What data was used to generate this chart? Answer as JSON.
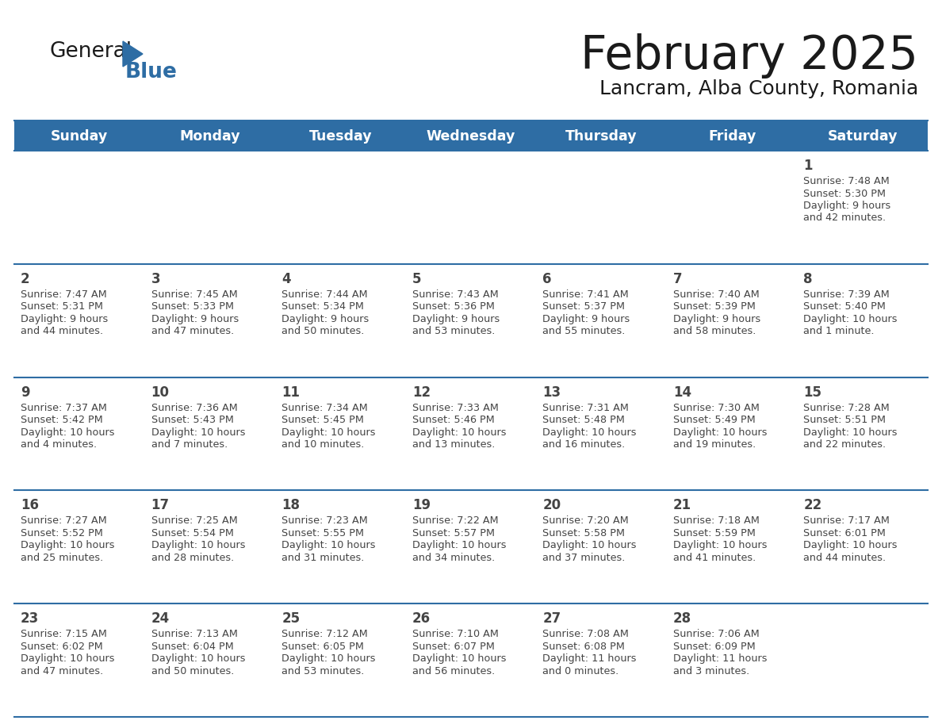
{
  "title": "February 2025",
  "subtitle": "Lancram, Alba County, Romania",
  "days_of_week": [
    "Sunday",
    "Monday",
    "Tuesday",
    "Wednesday",
    "Thursday",
    "Friday",
    "Saturday"
  ],
  "header_bg": "#2E6DA4",
  "header_text": "#FFFFFF",
  "cell_bg": "#FFFFFF",
  "cell_bg_alt": "#F5F5F5",
  "line_color": "#2E6DA4",
  "text_color": "#444444",
  "title_color": "#1a1a1a",
  "calendar": [
    [
      null,
      null,
      null,
      null,
      null,
      null,
      {
        "day": "1",
        "sunrise": "7:48 AM",
        "sunset": "5:30 PM",
        "daylight": "9 hours",
        "daylight2": "and 42 minutes."
      }
    ],
    [
      {
        "day": "2",
        "sunrise": "7:47 AM",
        "sunset": "5:31 PM",
        "daylight": "9 hours",
        "daylight2": "and 44 minutes."
      },
      {
        "day": "3",
        "sunrise": "7:45 AM",
        "sunset": "5:33 PM",
        "daylight": "9 hours",
        "daylight2": "and 47 minutes."
      },
      {
        "day": "4",
        "sunrise": "7:44 AM",
        "sunset": "5:34 PM",
        "daylight": "9 hours",
        "daylight2": "and 50 minutes."
      },
      {
        "day": "5",
        "sunrise": "7:43 AM",
        "sunset": "5:36 PM",
        "daylight": "9 hours",
        "daylight2": "and 53 minutes."
      },
      {
        "day": "6",
        "sunrise": "7:41 AM",
        "sunset": "5:37 PM",
        "daylight": "9 hours",
        "daylight2": "and 55 minutes."
      },
      {
        "day": "7",
        "sunrise": "7:40 AM",
        "sunset": "5:39 PM",
        "daylight": "9 hours",
        "daylight2": "and 58 minutes."
      },
      {
        "day": "8",
        "sunrise": "7:39 AM",
        "sunset": "5:40 PM",
        "daylight": "10 hours",
        "daylight2": "and 1 minute."
      }
    ],
    [
      {
        "day": "9",
        "sunrise": "7:37 AM",
        "sunset": "5:42 PM",
        "daylight": "10 hours",
        "daylight2": "and 4 minutes."
      },
      {
        "day": "10",
        "sunrise": "7:36 AM",
        "sunset": "5:43 PM",
        "daylight": "10 hours",
        "daylight2": "and 7 minutes."
      },
      {
        "day": "11",
        "sunrise": "7:34 AM",
        "sunset": "5:45 PM",
        "daylight": "10 hours",
        "daylight2": "and 10 minutes."
      },
      {
        "day": "12",
        "sunrise": "7:33 AM",
        "sunset": "5:46 PM",
        "daylight": "10 hours",
        "daylight2": "and 13 minutes."
      },
      {
        "day": "13",
        "sunrise": "7:31 AM",
        "sunset": "5:48 PM",
        "daylight": "10 hours",
        "daylight2": "and 16 minutes."
      },
      {
        "day": "14",
        "sunrise": "7:30 AM",
        "sunset": "5:49 PM",
        "daylight": "10 hours",
        "daylight2": "and 19 minutes."
      },
      {
        "day": "15",
        "sunrise": "7:28 AM",
        "sunset": "5:51 PM",
        "daylight": "10 hours",
        "daylight2": "and 22 minutes."
      }
    ],
    [
      {
        "day": "16",
        "sunrise": "7:27 AM",
        "sunset": "5:52 PM",
        "daylight": "10 hours",
        "daylight2": "and 25 minutes."
      },
      {
        "day": "17",
        "sunrise": "7:25 AM",
        "sunset": "5:54 PM",
        "daylight": "10 hours",
        "daylight2": "and 28 minutes."
      },
      {
        "day": "18",
        "sunrise": "7:23 AM",
        "sunset": "5:55 PM",
        "daylight": "10 hours",
        "daylight2": "and 31 minutes."
      },
      {
        "day": "19",
        "sunrise": "7:22 AM",
        "sunset": "5:57 PM",
        "daylight": "10 hours",
        "daylight2": "and 34 minutes."
      },
      {
        "day": "20",
        "sunrise": "7:20 AM",
        "sunset": "5:58 PM",
        "daylight": "10 hours",
        "daylight2": "and 37 minutes."
      },
      {
        "day": "21",
        "sunrise": "7:18 AM",
        "sunset": "5:59 PM",
        "daylight": "10 hours",
        "daylight2": "and 41 minutes."
      },
      {
        "day": "22",
        "sunrise": "7:17 AM",
        "sunset": "6:01 PM",
        "daylight": "10 hours",
        "daylight2": "and 44 minutes."
      }
    ],
    [
      {
        "day": "23",
        "sunrise": "7:15 AM",
        "sunset": "6:02 PM",
        "daylight": "10 hours",
        "daylight2": "and 47 minutes."
      },
      {
        "day": "24",
        "sunrise": "7:13 AM",
        "sunset": "6:04 PM",
        "daylight": "10 hours",
        "daylight2": "and 50 minutes."
      },
      {
        "day": "25",
        "sunrise": "7:12 AM",
        "sunset": "6:05 PM",
        "daylight": "10 hours",
        "daylight2": "and 53 minutes."
      },
      {
        "day": "26",
        "sunrise": "7:10 AM",
        "sunset": "6:07 PM",
        "daylight": "10 hours",
        "daylight2": "and 56 minutes."
      },
      {
        "day": "27",
        "sunrise": "7:08 AM",
        "sunset": "6:08 PM",
        "daylight": "11 hours",
        "daylight2": "and 0 minutes."
      },
      {
        "day": "28",
        "sunrise": "7:06 AM",
        "sunset": "6:09 PM",
        "daylight": "11 hours",
        "daylight2": "and 3 minutes."
      },
      null
    ]
  ]
}
